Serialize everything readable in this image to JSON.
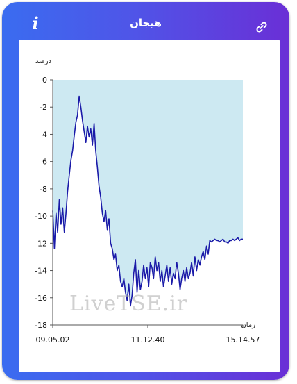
{
  "header": {
    "title": "هیجان",
    "info_icon": "info-icon",
    "link_icon": "link-icon"
  },
  "watermark": "LiveTSE.ir",
  "chart_data": {
    "type": "area",
    "title": "هیجان",
    "ylabel": "درصد",
    "xlabel": "زمان",
    "ylim": [
      -18,
      0
    ],
    "yticks": [
      0,
      -2,
      -4,
      -6,
      -8,
      -10,
      -12,
      -14,
      -16,
      -18
    ],
    "ytick_labels": [
      "0",
      "-2",
      "-4",
      "-6",
      "-8",
      "-10",
      "-12",
      "-14",
      "-16",
      "-18"
    ],
    "xtick_labels": [
      "09.05.02",
      "11.12.40",
      "15.14.57"
    ],
    "fill_color": "#cde9f2",
    "line_color": "#1a1aa8",
    "series": [
      {
        "values": [
          -9.6,
          -12.4,
          -9.8,
          -11.2,
          -8.8,
          -10.6,
          -9.4,
          -11.2,
          -9.8,
          -8.2,
          -7.0,
          -5.9,
          -5.2,
          -4.1,
          -3.1,
          -2.6,
          -1.2,
          -2.0,
          -3.0,
          -3.8,
          -4.6,
          -3.4,
          -4.2,
          -3.6,
          -4.8,
          -3.2,
          -5.2,
          -6.4,
          -7.8,
          -8.6,
          -9.8,
          -10.4,
          -9.6,
          -11.0,
          -10.2,
          -12.0,
          -12.4,
          -13.2,
          -12.8,
          -14.0,
          -13.6,
          -14.8,
          -15.2,
          -14.6,
          -15.6,
          -16.2,
          -15.0,
          -16.6,
          -15.8,
          -14.2,
          -13.2,
          -15.6,
          -14.0,
          -15.4,
          -14.8,
          -13.6,
          -14.6,
          -13.8,
          -15.2,
          -13.4,
          -13.8,
          -14.6,
          -13.0,
          -14.0,
          -13.4,
          -14.8,
          -14.0,
          -15.2,
          -14.4,
          -13.6,
          -14.8,
          -13.8,
          -15.0,
          -14.2,
          -14.6,
          -13.4,
          -14.2,
          -15.4,
          -14.6,
          -14.0,
          -14.8,
          -13.8,
          -14.6,
          -14.2,
          -13.4,
          -14.4,
          -13.0,
          -14.0,
          -13.2,
          -13.6,
          -13.0,
          -12.6,
          -13.2,
          -12.2,
          -12.8,
          -11.8,
          -11.9,
          -11.8,
          -11.7,
          -11.8,
          -11.8,
          -11.9,
          -11.8,
          -11.7,
          -11.9,
          -11.9,
          -12.0,
          -11.8,
          -11.8,
          -11.7,
          -11.8,
          -11.7,
          -11.6,
          -11.8,
          -11.7,
          -11.7
        ]
      }
    ]
  }
}
